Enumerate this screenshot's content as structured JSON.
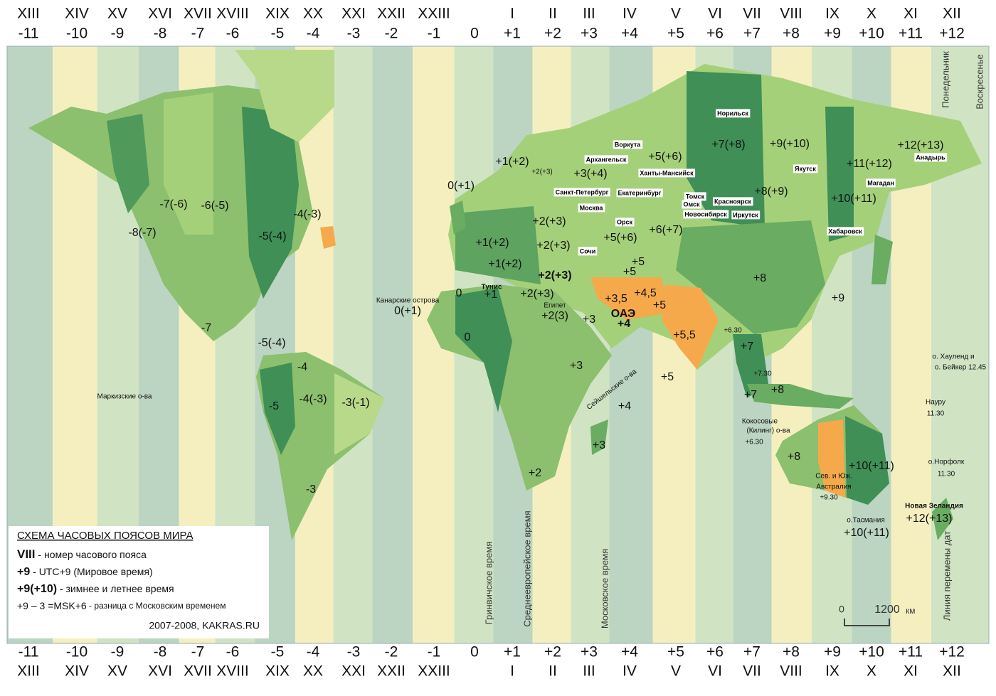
{
  "zones": [
    {
      "roman": "XIII",
      "offset": "-11"
    },
    {
      "roman": "XIV",
      "offset": "-10"
    },
    {
      "roman": "XV",
      "offset": "-9"
    },
    {
      "roman": "XVI",
      "offset": "-8"
    },
    {
      "roman": "XVII",
      "offset": "-7"
    },
    {
      "roman": "XVIII",
      "offset": "-6"
    },
    {
      "roman": "XIX",
      "offset": "-5"
    },
    {
      "roman": "XX",
      "offset": "-4"
    },
    {
      "roman": "XXI",
      "offset": "-3"
    },
    {
      "roman": "XXII",
      "offset": "-2"
    },
    {
      "roman": "XXIII",
      "offset": "-1"
    },
    {
      "roman": null,
      "offset": "0"
    },
    {
      "roman": "I",
      "offset": "+1"
    },
    {
      "roman": "II",
      "offset": "+2"
    },
    {
      "roman": "III",
      "offset": "+3"
    },
    {
      "roman": "IV",
      "offset": "+4"
    },
    {
      "roman": "V",
      "offset": "+5"
    },
    {
      "roman": "VI",
      "offset": "+6"
    },
    {
      "roman": "VII",
      "offset": "+7"
    },
    {
      "roman": "VIII",
      "offset": "+8"
    },
    {
      "roman": "IX",
      "offset": "+9"
    },
    {
      "roman": "X",
      "offset": "+10"
    },
    {
      "roman": "XI",
      "offset": "+11"
    },
    {
      "roman": "XII",
      "offset": "+12"
    }
  ],
  "map_labels": [
    "+1(+2)",
    "+2(+3)",
    "0(+1)",
    "-7(-6)",
    "-6(-5)",
    "-4(-3)",
    "-8(-7)",
    "-5(-4)",
    "+2(+3)",
    "+2(+3)",
    "+1(+2)",
    "+1(+2)",
    "+2(+3)",
    "+2(+3)",
    "+1",
    "0",
    "Канарские острова",
    "0(+1)",
    "-7",
    "-5(-4)",
    "-4",
    "-4(-3)",
    "-3(-1)",
    "-5",
    "-3",
    "0",
    "+2(3)",
    "+3",
    "+3",
    "+3",
    "+2",
    "+3,5",
    "+4,5",
    "ОАЭ",
    "+4",
    "+5",
    "+5",
    "+5",
    "+5,5",
    "+6.30",
    "+7",
    "+7.30",
    "+7",
    "+8",
    "+8",
    "+9",
    "+5",
    "+4",
    "+5(+6)",
    "+5(+6)",
    "+6(+7)",
    "+3(+4)",
    "+7(+8)",
    "+9(+10)",
    "+8(+9)",
    "+10(+11)",
    "+11(+12)",
    "+12(+13)",
    "+8",
    "+10(+11)",
    "Сев. и Юж.",
    "Австралия",
    "+9.30",
    "о.Тасмания",
    "+10(+11)",
    "Новая Зеландия",
    "+12(+13)",
    "о.Норфолк",
    "11.30",
    "о. Хауленд и",
    "о. Бейкер 12.45",
    "Науру",
    "11.30",
    "Маркизские о-ва",
    "Кокосовые",
    "(Килинг) о-ва",
    "+6.30",
    "Тунис",
    "Египет"
  ],
  "seychelles": "Сейшельские о-ва",
  "cities": [
    "Норильск",
    "Воркута",
    "Архангельск",
    "Ханты-Мансийск",
    "Санкт-Петербург",
    "Екатеринбург",
    "Томск",
    "Омск",
    "Красноярск",
    "Москва",
    "Новосибирск",
    "Иркутск",
    "Орск",
    "Сочи",
    "Якутск",
    "Магадан",
    "Анадырь",
    "Хабаровск"
  ],
  "vertical_labels": [
    "Гринвичское время",
    "Среднеевропейское время",
    "Московское время",
    "Линия перемены дат",
    "Понедельник",
    "Воскресенье"
  ],
  "legend": {
    "title": "СХЕМА  ЧАСОВЫХ ПОЯСОВ  МИРА",
    "items": [
      {
        "key": "VIII",
        "text": " - номер часового пояса"
      },
      {
        "key": "+9",
        "text": " - UTC+9 (Мировое время)"
      },
      {
        "key": "+9(+10)",
        "text": " - зимнее и летнее время"
      },
      {
        "key": "+9 – 3 =MSK+6",
        "text": " - разница с Московским временем"
      }
    ],
    "credit": "2007-2008, KAKRAS.RU"
  },
  "scale": {
    "start": "0",
    "end": "1200",
    "unit": "км"
  }
}
